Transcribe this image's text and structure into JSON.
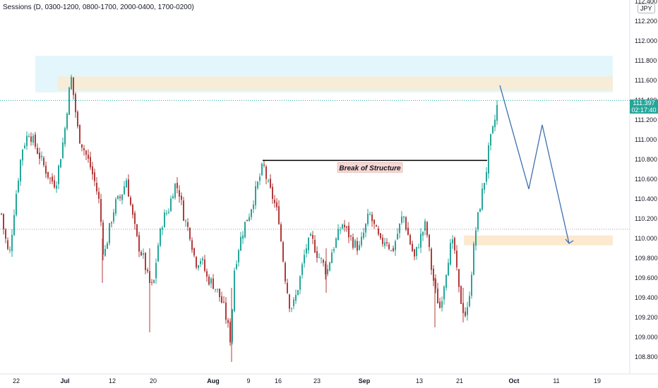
{
  "indicator": {
    "label": "Sessions (D, 0300-1200, 0800-1700, 2000-0400, 1700-0200)"
  },
  "price_axis": {
    "currency": "JPY",
    "ticks": [
      "112.400",
      "112.200",
      "112.000",
      "111.800",
      "111.600",
      "111.400",
      "111.200",
      "111.000",
      "110.800",
      "110.600",
      "110.400",
      "110.200",
      "110.000",
      "109.800",
      "109.600",
      "109.400",
      "109.200",
      "109.000",
      "108.800"
    ]
  },
  "time_axis": {
    "ticks": [
      "22",
      "Jul",
      "12",
      "20",
      "Aug",
      "9",
      "16",
      "23",
      "Sep",
      "13",
      "21",
      "Oct",
      "11",
      "19"
    ]
  },
  "current_price": {
    "price": "111.397",
    "countdown": "02:17:40",
    "color": "#26a69a"
  },
  "annotations": {
    "bos_label": "Break of Structure"
  },
  "colors": {
    "bull": "#26a69a",
    "bear": "#b23b3b",
    "supply_outer": "#e3f6fb",
    "supply_inner": "#f6ecd7",
    "demand": "#fbe9d0",
    "projection": "#3d6fb0",
    "bos_label_bg": "#f7d6d3"
  },
  "chart_data": {
    "type": "candlestick",
    "symbol_currency": "JPY",
    "ylim": [
      108.7,
      112.45
    ],
    "y_ticks": [
      112.4,
      112.2,
      112.0,
      111.8,
      111.6,
      111.4,
      111.2,
      111.0,
      110.8,
      110.6,
      110.4,
      110.2,
      110.0,
      109.8,
      109.6,
      109.4,
      109.2,
      109.0,
      108.8
    ],
    "x_tick_labels": [
      "22",
      "Jul",
      "12",
      "20",
      "Aug",
      "9",
      "16",
      "23",
      "Sep",
      "13",
      "21",
      "Oct",
      "11",
      "19"
    ],
    "path": [
      [
        0,
        110.3
      ],
      [
        4,
        110.1
      ],
      [
        12,
        109.8
      ],
      [
        20,
        110.35
      ],
      [
        30,
        110.9
      ],
      [
        40,
        111.08
      ],
      [
        50,
        110.92
      ],
      [
        60,
        110.75
      ],
      [
        70,
        110.6
      ],
      [
        78,
        110.55
      ],
      [
        84,
        110.8
      ],
      [
        90,
        111.05
      ],
      [
        96,
        111.45
      ],
      [
        100,
        111.62
      ],
      [
        104,
        111.4
      ],
      [
        110,
        111.05
      ],
      [
        118,
        110.9
      ],
      [
        126,
        110.75
      ],
      [
        134,
        110.55
      ],
      [
        140,
        110.35
      ],
      [
        146,
        109.8
      ],
      [
        154,
        110.1
      ],
      [
        162,
        110.35
      ],
      [
        170,
        110.42
      ],
      [
        178,
        110.6
      ],
      [
        186,
        110.25
      ],
      [
        194,
        109.95
      ],
      [
        202,
        109.8
      ],
      [
        210,
        109.55
      ],
      [
        216,
        109.5
      ],
      [
        222,
        109.9
      ],
      [
        230,
        110.2
      ],
      [
        238,
        110.3
      ],
      [
        246,
        110.55
      ],
      [
        252,
        110.5
      ],
      [
        260,
        110.2
      ],
      [
        268,
        110.05
      ],
      [
        276,
        109.75
      ],
      [
        284,
        109.8
      ],
      [
        292,
        109.6
      ],
      [
        300,
        109.55
      ],
      [
        308,
        109.45
      ],
      [
        316,
        109.3
      ],
      [
        322,
        109.1
      ],
      [
        326,
        108.95
      ],
      [
        330,
        109.65
      ],
      [
        338,
        109.95
      ],
      [
        346,
        110.15
      ],
      [
        352,
        110.25
      ],
      [
        358,
        110.4
      ],
      [
        364,
        110.55
      ],
      [
        372,
        110.75
      ],
      [
        378,
        110.55
      ],
      [
        386,
        110.4
      ],
      [
        394,
        110.2
      ],
      [
        398,
        109.9
      ],
      [
        404,
        109.55
      ],
      [
        410,
        109.3
      ],
      [
        416,
        109.35
      ],
      [
        424,
        109.6
      ],
      [
        432,
        109.9
      ],
      [
        440,
        110.0
      ],
      [
        448,
        109.85
      ],
      [
        456,
        109.75
      ],
      [
        462,
        109.65
      ],
      [
        468,
        109.85
      ],
      [
        476,
        110.0
      ],
      [
        484,
        110.15
      ],
      [
        492,
        110.05
      ],
      [
        500,
        109.95
      ],
      [
        508,
        109.9
      ],
      [
        516,
        110.1
      ],
      [
        522,
        110.25
      ],
      [
        530,
        110.1
      ],
      [
        538,
        109.95
      ],
      [
        546,
        110.0
      ],
      [
        554,
        109.85
      ],
      [
        562,
        110.05
      ],
      [
        570,
        110.25
      ],
      [
        578,
        110.0
      ],
      [
        586,
        109.8
      ],
      [
        594,
        110.0
      ],
      [
        602,
        110.15
      ],
      [
        610,
        109.7
      ],
      [
        616,
        109.45
      ],
      [
        622,
        109.3
      ],
      [
        628,
        109.55
      ],
      [
        636,
        109.9
      ],
      [
        642,
        109.95
      ],
      [
        648,
        109.5
      ],
      [
        654,
        109.3
      ],
      [
        660,
        109.2
      ],
      [
        666,
        109.6
      ],
      [
        672,
        110.05
      ],
      [
        678,
        110.3
      ],
      [
        684,
        110.55
      ],
      [
        688,
        110.7
      ],
      [
        692,
        110.95
      ],
      [
        696,
        111.05
      ],
      [
        700,
        111.2
      ],
      [
        704,
        111.38
      ]
    ],
    "current_price": 111.397,
    "zones": [
      {
        "kind": "supply-outer",
        "top": 111.85,
        "bottom": 111.48
      },
      {
        "kind": "supply-inner",
        "top": 111.64,
        "bottom": 111.5
      },
      {
        "kind": "demand",
        "top": 110.03,
        "bottom": 109.93
      }
    ],
    "break_of_structure": {
      "price": 110.79,
      "label": "Break of Structure"
    },
    "projection": [
      111.55,
      110.5,
      111.15,
      109.95
    ],
    "grid": false
  }
}
